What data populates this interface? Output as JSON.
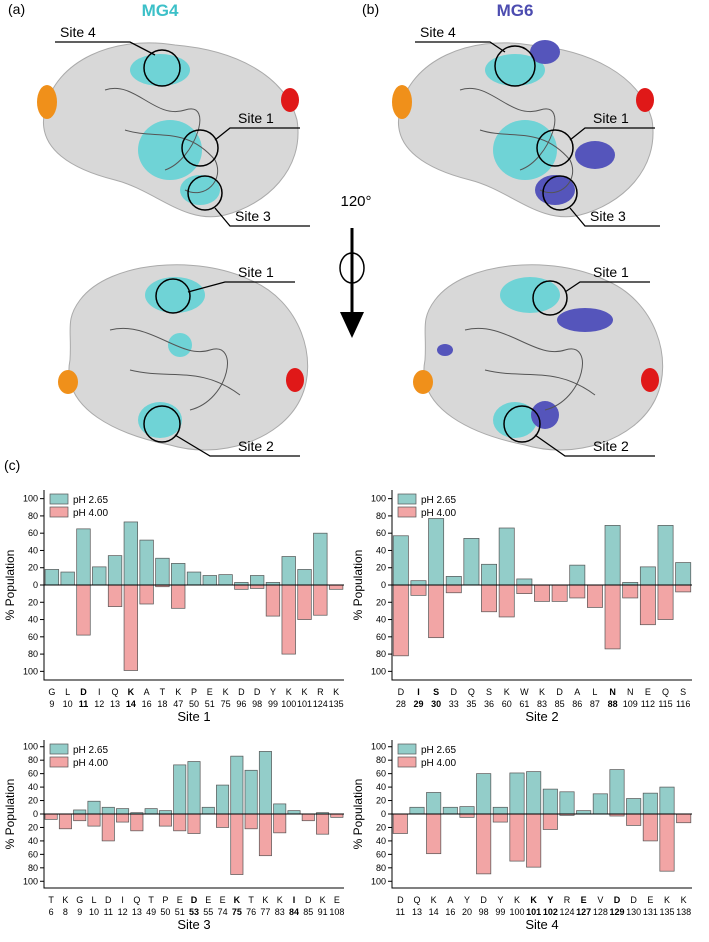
{
  "figure": {
    "panel_a": "(a)",
    "title_a": "MG4",
    "panel_b": "(b)",
    "title_b": "MG6",
    "rotation": "120°",
    "panel_c": "(c)",
    "labels_a": [
      "Site 4",
      "Site 1",
      "Site 3",
      "Site 1",
      "Site 2"
    ],
    "labels_b": [
      "Site 4",
      "Site 1",
      "Site 3",
      "Site 1",
      "Site 2"
    ]
  },
  "chart_data": [
    {
      "type": "bar",
      "xlabel": "Site 1",
      "ylabel": "% Population",
      "legend": "upper left",
      "categories": [
        "G",
        "L",
        "D",
        "I",
        "Q",
        "K",
        "A",
        "T",
        "K",
        "P",
        "E",
        "K",
        "D",
        "D",
        "Y",
        "K",
        "K",
        "R",
        "K"
      ],
      "residue_numbers": [
        9,
        10,
        11,
        12,
        13,
        14,
        16,
        18,
        47,
        50,
        51,
        75,
        96,
        98,
        99,
        100,
        101,
        124,
        135
      ],
      "bold": [
        false,
        false,
        true,
        false,
        false,
        true,
        false,
        false,
        false,
        false,
        false,
        false,
        false,
        false,
        false,
        false,
        false,
        false,
        false
      ],
      "series": [
        {
          "name": "pH 2.65",
          "color": "#93cdc9",
          "values": [
            18,
            15,
            65,
            21,
            34,
            73,
            52,
            31,
            25,
            15,
            11,
            12,
            3,
            11,
            3,
            33,
            18,
            60,
            0
          ]
        },
        {
          "name": "pH 4.00",
          "color": "#f2a5a5",
          "values": [
            0,
            0,
            -58,
            0,
            -25,
            -99,
            -22,
            -2,
            -27,
            0,
            0,
            0,
            -5,
            -4,
            -36,
            -80,
            -40,
            -35,
            -5
          ]
        }
      ],
      "ylim": [
        -110,
        110
      ],
      "yticks": [
        100,
        80,
        60,
        40,
        20,
        0,
        {
          "value": -20,
          "label": "20"
        },
        {
          "value": -40,
          "label": "40"
        },
        {
          "value": -60,
          "label": "60"
        },
        {
          "value": -80,
          "label": "80"
        },
        {
          "value": -100,
          "label": "100"
        }
      ]
    },
    {
      "type": "bar",
      "xlabel": "Site 2",
      "ylabel": "% Population",
      "legend": "upper left",
      "categories": [
        "D",
        "I",
        "S",
        "D",
        "Q",
        "S",
        "K",
        "W",
        "K",
        "D",
        "A",
        "L",
        "N",
        "N",
        "E",
        "Q",
        "S"
      ],
      "residue_numbers": [
        28,
        29,
        30,
        33,
        35,
        36,
        60,
        61,
        83,
        85,
        86,
        87,
        88,
        109,
        112,
        115,
        116
      ],
      "bold": [
        false,
        true,
        true,
        false,
        false,
        false,
        false,
        false,
        false,
        false,
        false,
        false,
        true,
        false,
        false,
        false,
        false
      ],
      "series": [
        {
          "name": "pH 2.65",
          "color": "#93cdc9",
          "values": [
            57,
            5,
            77,
            10,
            54,
            24,
            66,
            7,
            0,
            0,
            23,
            0,
            69,
            3,
            21,
            69,
            26
          ]
        },
        {
          "name": "pH 4.00",
          "color": "#f2a5a5",
          "values": [
            -82,
            -12,
            -61,
            -9,
            0,
            -31,
            -37,
            -10,
            -19,
            -19,
            -15,
            -26,
            -74,
            -15,
            -46,
            -40,
            -8
          ]
        }
      ],
      "ylim": [
        -110,
        110
      ],
      "yticks": [
        100,
        80,
        60,
        40,
        20,
        0,
        {
          "value": -20,
          "label": "20"
        },
        {
          "value": -40,
          "label": "40"
        },
        {
          "value": -60,
          "label": "60"
        },
        {
          "value": -80,
          "label": "80"
        },
        {
          "value": -100,
          "label": "100"
        }
      ]
    },
    {
      "type": "bar",
      "xlabel": "Site 3",
      "ylabel": "% Population",
      "legend": "upper left",
      "categories": [
        "T",
        "K",
        "G",
        "L",
        "D",
        "I",
        "Q",
        "T",
        "P",
        "E",
        "D",
        "E",
        "E",
        "K",
        "T",
        "K",
        "K",
        "I",
        "D",
        "K",
        "E"
      ],
      "residue_numbers": [
        6,
        8,
        9,
        10,
        11,
        12,
        13,
        49,
        50,
        51,
        53,
        55,
        74,
        75,
        76,
        77,
        83,
        84,
        85,
        91,
        108
      ],
      "bold": [
        false,
        false,
        false,
        false,
        false,
        false,
        false,
        false,
        false,
        false,
        true,
        false,
        false,
        true,
        false,
        false,
        false,
        true,
        false,
        false,
        false
      ],
      "series": [
        {
          "name": "pH 2.65",
          "color": "#93cdc9",
          "values": [
            0,
            0,
            6,
            19,
            10,
            8,
            2,
            8,
            5,
            73,
            78,
            10,
            43,
            86,
            65,
            93,
            15,
            5,
            0,
            2,
            0
          ]
        },
        {
          "name": "pH 4.00",
          "color": "#f2a5a5",
          "values": [
            -8,
            -22,
            -10,
            -18,
            -40,
            -12,
            -25,
            0,
            -18,
            -25,
            -29,
            0,
            -20,
            -90,
            -22,
            -62,
            -28,
            0,
            -10,
            -30,
            -5
          ]
        }
      ],
      "ylim": [
        -110,
        110
      ],
      "yticks": [
        100,
        80,
        60,
        40,
        20,
        0,
        {
          "value": -20,
          "label": "20"
        },
        {
          "value": -40,
          "label": "40"
        },
        {
          "value": -60,
          "label": "60"
        },
        {
          "value": -80,
          "label": "80"
        },
        {
          "value": -100,
          "label": "100"
        }
      ]
    },
    {
      "type": "bar",
      "xlabel": "Site 4",
      "ylabel": "% Population",
      "legend": "upper left",
      "categories": [
        "D",
        "Q",
        "K",
        "A",
        "Y",
        "D",
        "Y",
        "K",
        "K",
        "Y",
        "R",
        "E",
        "V",
        "D",
        "D",
        "E",
        "K",
        "K"
      ],
      "residue_numbers": [
        11,
        13,
        14,
        16,
        20,
        98,
        99,
        100,
        101,
        102,
        124,
        127,
        128,
        129,
        130,
        131,
        135,
        138
      ],
      "bold": [
        false,
        false,
        false,
        false,
        false,
        false,
        false,
        false,
        true,
        true,
        false,
        true,
        false,
        true,
        false,
        false,
        false,
        false
      ],
      "series": [
        {
          "name": "pH 2.65",
          "color": "#93cdc9",
          "values": [
            0,
            10,
            32,
            10,
            11,
            60,
            10,
            61,
            63,
            37,
            33,
            5,
            30,
            66,
            23,
            31,
            40,
            0
          ]
        },
        {
          "name": "pH 4.00",
          "color": "#f2a5a5",
          "values": [
            -29,
            0,
            -59,
            0,
            -5,
            -89,
            -12,
            -70,
            -79,
            -23,
            -2,
            0,
            0,
            -3,
            -17,
            -40,
            -85,
            -13
          ]
        }
      ],
      "ylim": [
        -110,
        110
      ],
      "yticks": [
        100,
        80,
        60,
        40,
        20,
        0,
        {
          "value": -20,
          "label": "20"
        },
        {
          "value": -40,
          "label": "40"
        },
        {
          "value": -60,
          "label": "60"
        },
        {
          "value": -80,
          "label": "80"
        },
        {
          "value": -100,
          "label": "100"
        }
      ]
    }
  ]
}
